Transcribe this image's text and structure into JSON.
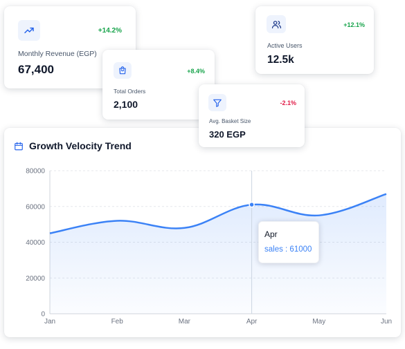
{
  "kpis": {
    "revenue": {
      "label": "Monthly Revenue (EGP)",
      "value": "67,400",
      "change": "+14.2%",
      "icon": "trending-up-icon"
    },
    "orders": {
      "label": "Total Orders",
      "value": "2,100",
      "change": "+8.4%",
      "icon": "shopping-bag-icon"
    },
    "users": {
      "label": "Active Users",
      "value": "12.5k",
      "change": "+12.1%",
      "icon": "users-icon"
    },
    "basket": {
      "label": "Avg. Basket Size",
      "value": "320 EGP",
      "change": "-2.1%",
      "icon": "filter-icon"
    }
  },
  "colors": {
    "positive": "#16a34a",
    "negative": "#e11d48",
    "accent": "#3b82f6",
    "icon_background": "#eef3fd"
  },
  "chart_panel": {
    "title": "Growth Velocity Trend",
    "icon": "calendar-icon",
    "tooltip": {
      "category": "Apr",
      "series_key": "sales",
      "value": 61000,
      "text": "sales : 61000"
    }
  },
  "chart_data": {
    "type": "area",
    "categories": [
      "Jan",
      "Feb",
      "Mar",
      "Apr",
      "May",
      "Jun"
    ],
    "series": [
      {
        "values": [
          45000,
          52000,
          48000,
          61000,
          55000,
          67000
        ]
      }
    ],
    "ylim": [
      0,
      80000
    ],
    "yticks": [
      0,
      20000,
      40000,
      60000,
      80000
    ],
    "ytick_labels": [
      "0",
      "20000",
      "40000",
      "60000",
      "80000"
    ],
    "grid": "horizontal dashed",
    "line_color": "#3b82f6",
    "highlighted_category": "Apr"
  }
}
